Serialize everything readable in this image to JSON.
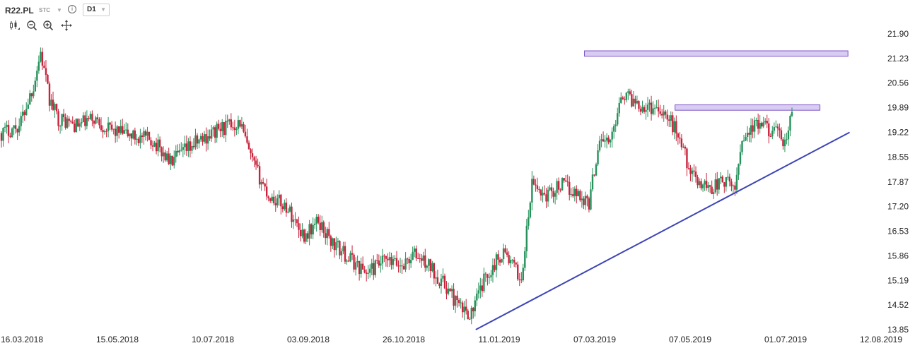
{
  "header": {
    "symbol": "R22.PL",
    "market": "STC",
    "info_icon": "info-icon",
    "timeframe": "D1",
    "tools": [
      "candles-icon",
      "zoom-out-icon",
      "zoom-in-icon",
      "pan-icon"
    ]
  },
  "colors": {
    "up": "#26915a",
    "down": "#c8233c",
    "trendline": "#3d45b5",
    "zone_fill": "#d9ccf2",
    "zone_stroke": "#7d55c7"
  },
  "chart_data": {
    "type": "candlestick",
    "timeframe": "D1",
    "y_ticks": [
      "21.90",
      "21.23",
      "20.56",
      "19.89",
      "19.22",
      "18.55",
      "17.87",
      "17.20",
      "16.53",
      "15.86",
      "15.19",
      "14.52",
      "13.85"
    ],
    "x_ticks": [
      "16.03.2018",
      "15.05.2018",
      "10.07.2018",
      "03.09.2018",
      "26.10.2018",
      "11.01.2019",
      "07.03.2019",
      "07.05.2019",
      "01.07.2019",
      "12.08.2019"
    ],
    "ylim": [
      13.85,
      22.2
    ],
    "grid": false,
    "anchors": [
      {
        "t": 0,
        "p": 19.2
      },
      {
        "t": 10,
        "p": 19.4
      },
      {
        "t": 18,
        "p": 20.5
      },
      {
        "t": 22,
        "p": 21.4
      },
      {
        "t": 27,
        "p": 20.1
      },
      {
        "t": 32,
        "p": 19.6
      },
      {
        "t": 42,
        "p": 19.4
      },
      {
        "t": 52,
        "p": 19.6
      },
      {
        "t": 60,
        "p": 19.3
      },
      {
        "t": 75,
        "p": 19.1
      },
      {
        "t": 85,
        "p": 19.0
      },
      {
        "t": 95,
        "p": 18.4
      },
      {
        "t": 108,
        "p": 18.9
      },
      {
        "t": 122,
        "p": 19.3
      },
      {
        "t": 134,
        "p": 19.5
      },
      {
        "t": 140,
        "p": 18.5
      },
      {
        "t": 150,
        "p": 17.5
      },
      {
        "t": 160,
        "p": 17.2
      },
      {
        "t": 170,
        "p": 16.4
      },
      {
        "t": 178,
        "p": 16.8
      },
      {
        "t": 186,
        "p": 16.2
      },
      {
        "t": 195,
        "p": 15.8
      },
      {
        "t": 205,
        "p": 15.4
      },
      {
        "t": 215,
        "p": 15.7
      },
      {
        "t": 225,
        "p": 15.6
      },
      {
        "t": 232,
        "p": 15.9
      },
      {
        "t": 240,
        "p": 15.6
      },
      {
        "t": 250,
        "p": 15.0
      },
      {
        "t": 258,
        "p": 14.4
      },
      {
        "t": 264,
        "p": 14.3
      },
      {
        "t": 272,
        "p": 15.3
      },
      {
        "t": 282,
        "p": 16.0
      },
      {
        "t": 292,
        "p": 15.2
      },
      {
        "t": 298,
        "p": 17.8
      },
      {
        "t": 306,
        "p": 17.5
      },
      {
        "t": 314,
        "p": 17.8
      },
      {
        "t": 322,
        "p": 17.6
      },
      {
        "t": 330,
        "p": 17.3
      },
      {
        "t": 336,
        "p": 19.1
      },
      {
        "t": 342,
        "p": 18.9
      },
      {
        "t": 348,
        "p": 20.3
      },
      {
        "t": 355,
        "p": 20.1
      },
      {
        "t": 362,
        "p": 19.9
      },
      {
        "t": 370,
        "p": 19.9
      },
      {
        "t": 380,
        "p": 19.2
      },
      {
        "t": 388,
        "p": 18.0
      },
      {
        "t": 398,
        "p": 17.7
      },
      {
        "t": 405,
        "p": 17.9
      },
      {
        "t": 412,
        "p": 17.7
      },
      {
        "t": 416,
        "p": 19.1
      },
      {
        "t": 424,
        "p": 19.4
      },
      {
        "t": 433,
        "p": 19.3
      },
      {
        "t": 440,
        "p": 18.9
      },
      {
        "t": 444,
        "p": 19.7
      }
    ],
    "timeline": {
      "t0": 0,
      "date0": "16.03.2018",
      "t1": 444,
      "date1": "09.07.2019"
    },
    "trendline": {
      "start": {
        "date": "29.12.2018",
        "price": 13.85
      },
      "end": {
        "date": "13.08.2019",
        "price": 19.22
      }
    },
    "resistance_zones": [
      {
        "start": "05.03.2019",
        "end": "12.08.2019",
        "low": 21.33,
        "high": 21.4
      },
      {
        "start": "29.04.2019",
        "end": "26.07.2019",
        "low": 19.86,
        "high": 19.93
      }
    ]
  }
}
